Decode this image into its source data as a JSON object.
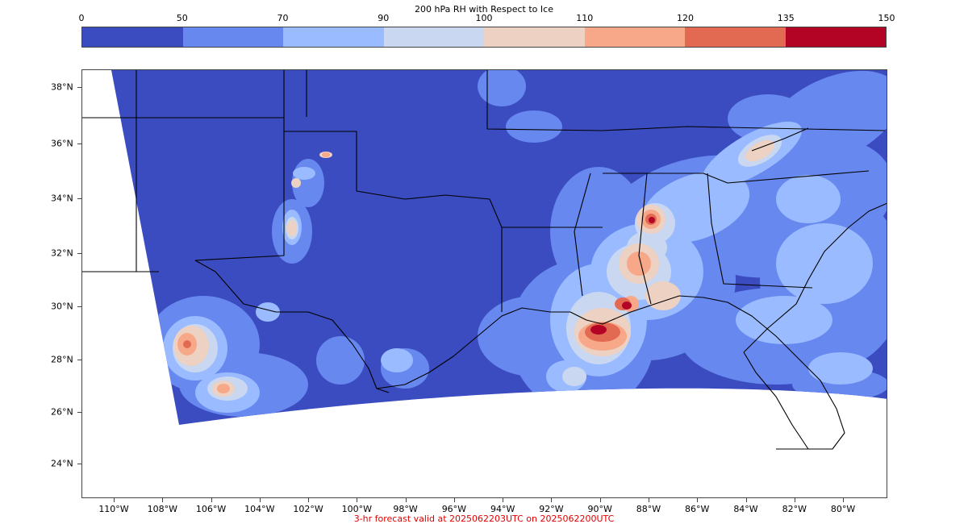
{
  "colorbar": {
    "title": "200 hPa RH with Respect to Ice",
    "tick_labels": [
      "0",
      "50",
      "70",
      "90",
      "100",
      "110",
      "120",
      "135",
      "150"
    ],
    "colors": [
      "#3b4cc0",
      "#6788ee",
      "#9abbff",
      "#c9d7f0",
      "#edd1c2",
      "#f7a889",
      "#e26952",
      "#b40426"
    ]
  },
  "map": {
    "lat_labels": [
      "38°N",
      "36°N",
      "34°N",
      "32°N",
      "30°N",
      "28°N",
      "26°N",
      "24°N"
    ],
    "lon_labels": [
      "110°W",
      "108°W",
      "106°W",
      "104°W",
      "102°W",
      "100°W",
      "98°W",
      "96°W",
      "94°W",
      "92°W",
      "90°W",
      "88°W",
      "86°W",
      "84°W",
      "82°W",
      "80°W"
    ],
    "background_color": "#3b4cc0",
    "boundary_color": "#000000"
  },
  "caption": "3-hr forecast valid at 2025062203UTC on 2025062200UTC"
}
